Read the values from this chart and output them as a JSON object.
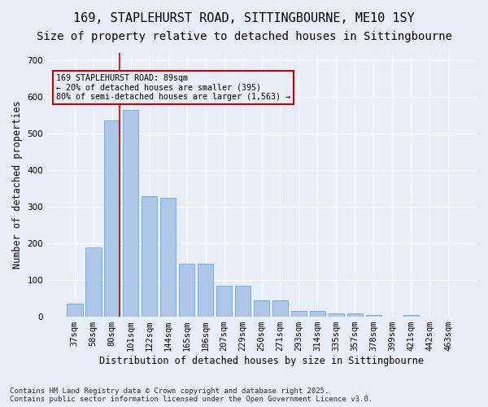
{
  "title1": "169, STAPLEHURST ROAD, SITTINGBOURNE, ME10 1SY",
  "title2": "Size of property relative to detached houses in Sittingbourne",
  "xlabel": "Distribution of detached houses by size in Sittingbourne",
  "ylabel": "Number of detached properties",
  "categories": [
    "37sqm",
    "58sqm",
    "80sqm",
    "101sqm",
    "122sqm",
    "144sqm",
    "165sqm",
    "186sqm",
    "207sqm",
    "229sqm",
    "250sqm",
    "271sqm",
    "293sqm",
    "314sqm",
    "335sqm",
    "357sqm",
    "378sqm",
    "399sqm",
    "421sqm",
    "442sqm",
    "463sqm"
  ],
  "values": [
    35,
    190,
    535,
    565,
    330,
    325,
    145,
    145,
    85,
    85,
    45,
    45,
    15,
    15,
    10,
    10,
    5,
    0,
    5,
    0,
    0
  ],
  "bar_color": "#aec6e8",
  "bar_edge_color": "#5a9fd4",
  "bg_color": "#e8eef8",
  "grid_color": "#ffffff",
  "vline_x": 2,
  "vline_color": "#cc0000",
  "annotation_box_text": "169 STAPLEHURST ROAD: 89sqm\n← 20% of detached houses are smaller (395)\n80% of semi-detached houses are larger (1,563) →",
  "annotation_box_color": "#cc0000",
  "footnote": "Contains HM Land Registry data © Crown copyright and database right 2025.\nContains public sector information licensed under the Open Government Licence v3.0.",
  "ylim": [
    0,
    720
  ],
  "title_fontsize": 11,
  "subtitle_fontsize": 10,
  "axis_fontsize": 8.5,
  "tick_fontsize": 7.5
}
